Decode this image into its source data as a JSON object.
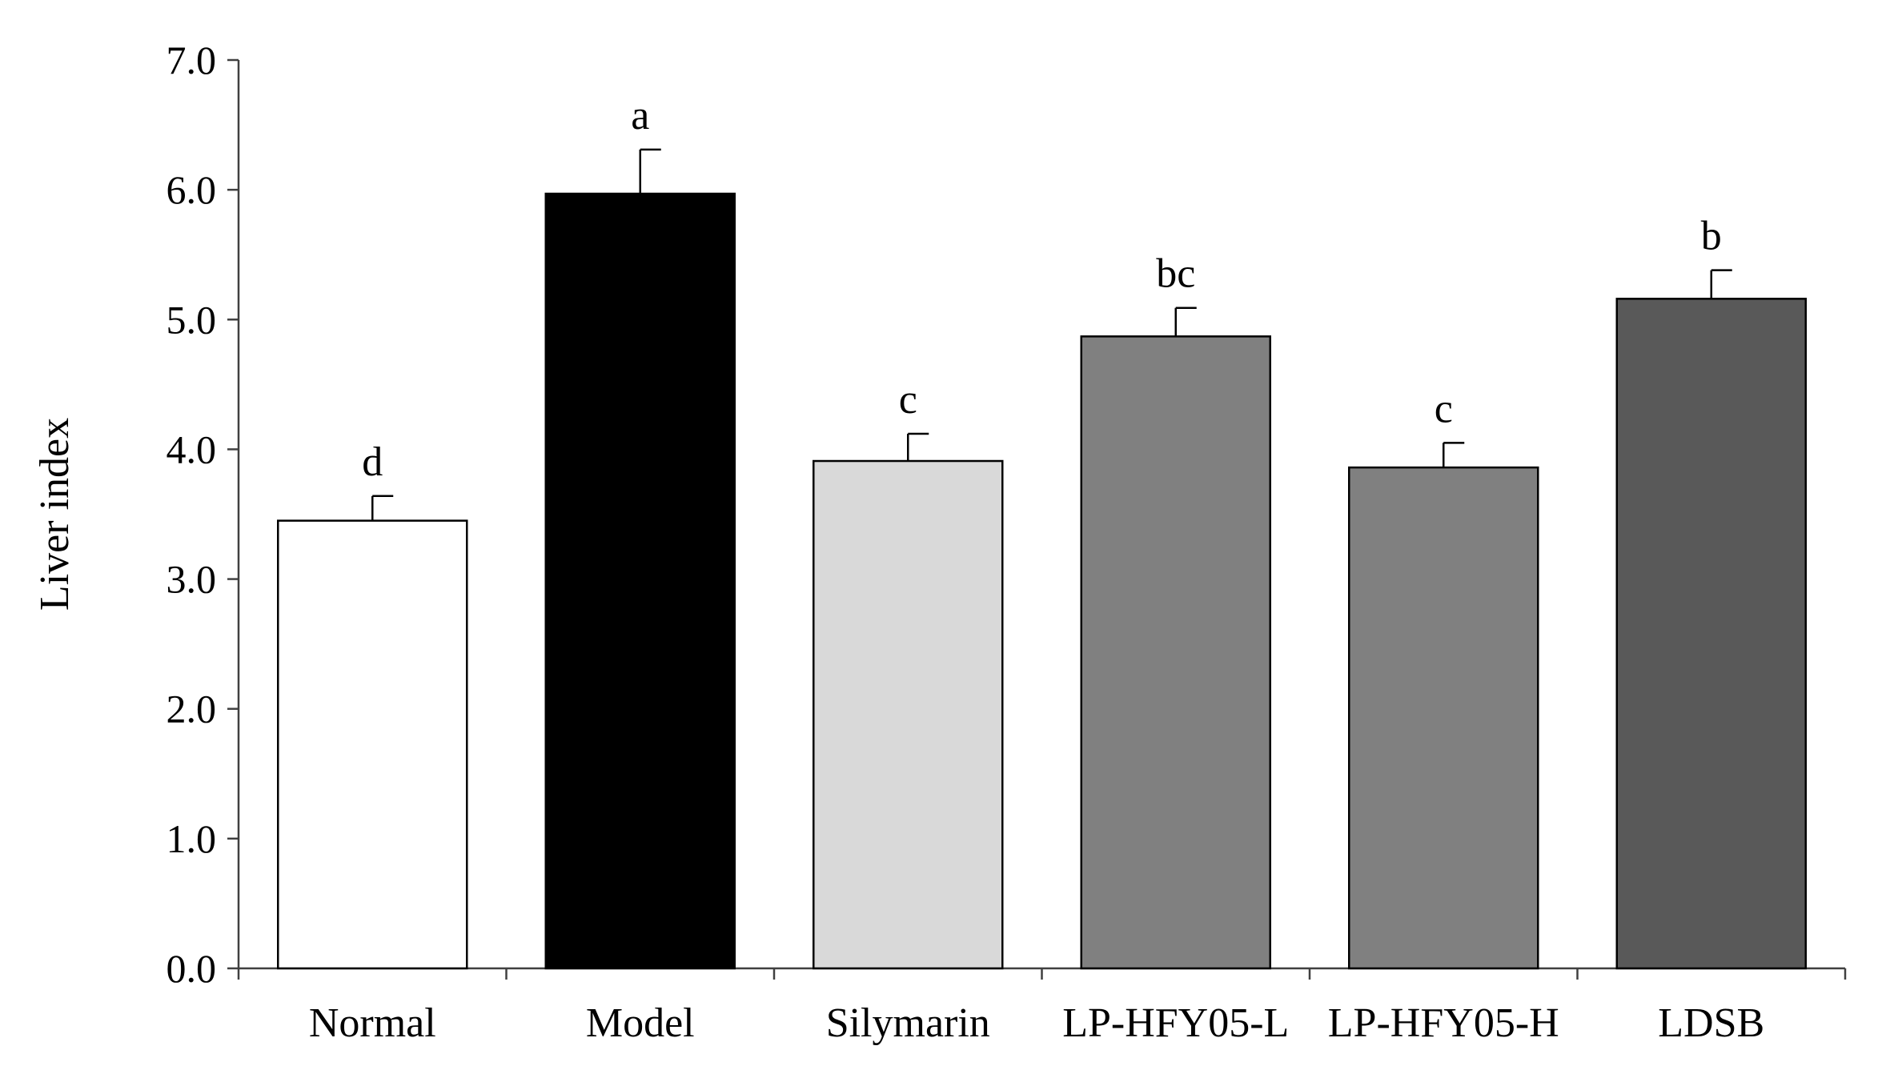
{
  "chart_data": {
    "type": "bar",
    "title": "",
    "xlabel": "",
    "ylabel": "Liver index",
    "ylim": [
      0,
      7
    ],
    "yticks": [
      "0.0",
      "1.0",
      "2.0",
      "3.0",
      "4.0",
      "5.0",
      "6.0",
      "7.0"
    ],
    "grid": false,
    "legend": "none",
    "categories": [
      "Normal",
      "Model",
      "Silymarin",
      "LP-HFY05-L",
      "LP-HFY05-H",
      "LDSB"
    ],
    "values": [
      3.45,
      5.97,
      3.91,
      4.87,
      3.86,
      5.16
    ],
    "errors": [
      0.19,
      0.34,
      0.21,
      0.22,
      0.19,
      0.22
    ],
    "significance": [
      "d",
      "a",
      "c",
      "bc",
      "c",
      "b"
    ],
    "bar_colors": [
      "#ffffff",
      "#000000",
      "#d9d9d9",
      "#808080",
      "#808080",
      "#595959"
    ],
    "axis_color": "#404040"
  }
}
